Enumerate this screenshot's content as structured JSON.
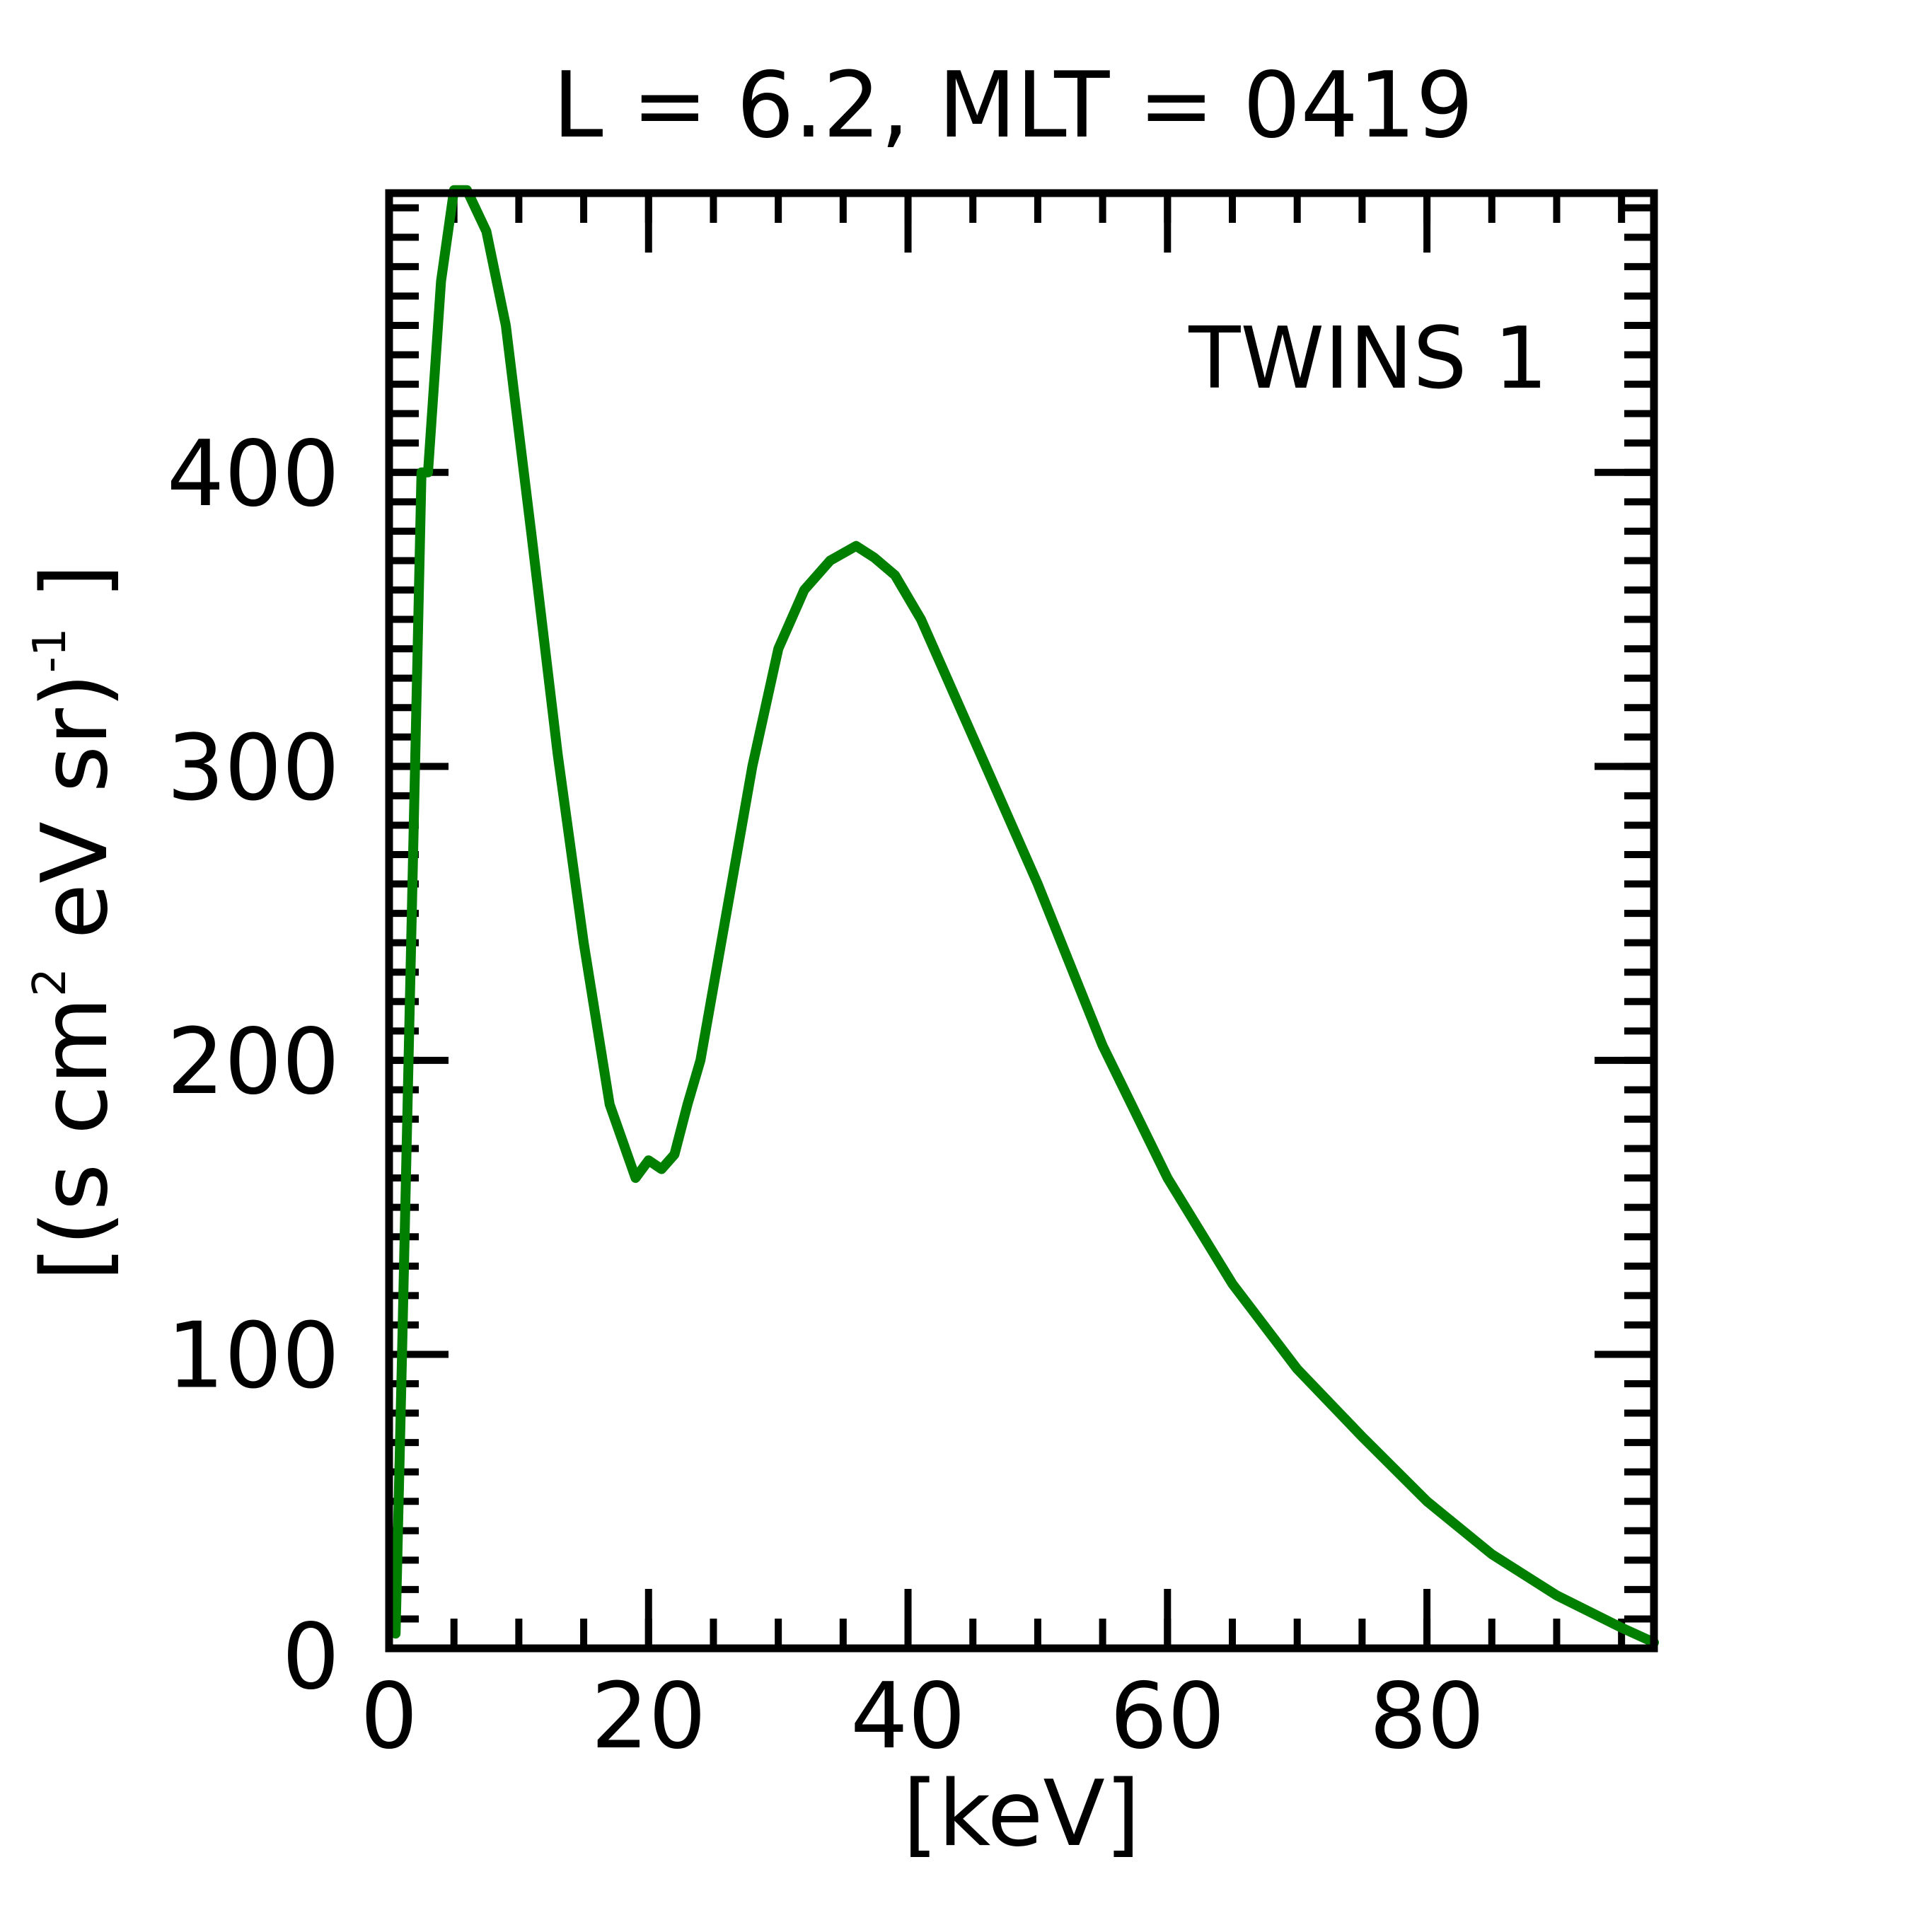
{
  "chart_data": {
    "type": "line",
    "title": "L =  6.2, MLT = 0419",
    "xlabel": "[keV]",
    "ylabel": {
      "parts": [
        "[(s cm",
        "2",
        " eV sr)",
        "-1",
        " ]"
      ]
    },
    "xlim": [
      0,
      97.5
    ],
    "ylim": [
      0,
      495
    ],
    "xticks": {
      "major": [
        0,
        20,
        40,
        60,
        80
      ],
      "labels": [
        "0",
        "20",
        "40",
        "60",
        "80"
      ],
      "minor_step": 5
    },
    "yticks": {
      "major": [
        0,
        100,
        200,
        300,
        400
      ],
      "labels": [
        "0",
        "100",
        "200",
        "300",
        "400"
      ],
      "minor_step": 10
    },
    "series": [
      {
        "name": "TWINS 1",
        "color": "#007f00",
        "x": [
          0.5,
          1.0,
          1.5,
          2.0,
          2.5,
          3.0,
          4.0,
          5.0,
          6.0,
          7.5,
          9.0,
          11,
          13,
          15,
          17,
          19,
          20,
          21,
          22,
          23,
          24,
          26,
          28,
          30,
          32,
          34,
          36,
          37.4,
          39,
          41,
          43,
          46,
          50,
          55,
          60,
          65,
          70,
          75,
          80,
          85,
          90,
          95,
          97.5
        ],
        "values": [
          5,
          100,
          200,
          300,
          400,
          400,
          465,
          496,
          496,
          482,
          450,
          378,
          304,
          240,
          185,
          160,
          166,
          163,
          168,
          185,
          200,
          250,
          300,
          340,
          360,
          370,
          375,
          371,
          365,
          350,
          330,
          300,
          260,
          205,
          160,
          124,
          95,
          72,
          50,
          32,
          18,
          7,
          2
        ]
      }
    ],
    "legend": {
      "label": "TWINS 1",
      "color": "#007f00",
      "position": "top-right"
    },
    "grid": false
  }
}
